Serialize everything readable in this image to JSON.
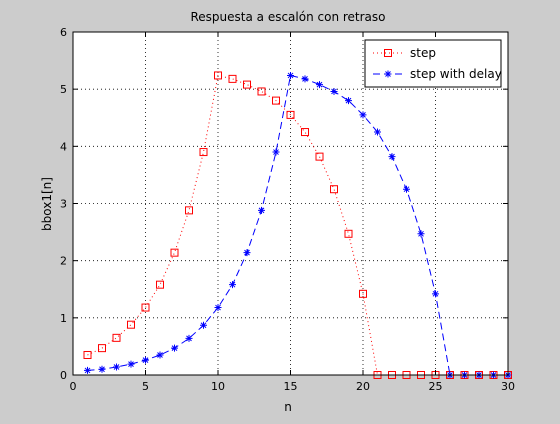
{
  "chart_data": {
    "type": "line",
    "title": "Respuesta a escalón con retraso",
    "xlabel": "n",
    "ylabel": "bbox1[n]",
    "xlim": [
      0,
      30
    ],
    "ylim": [
      0,
      6
    ],
    "xticks": [
      0,
      5,
      10,
      15,
      20,
      25,
      30
    ],
    "yticks": [
      0,
      1,
      2,
      3,
      4,
      5,
      6
    ],
    "grid": true,
    "legend_position": "top-right",
    "series": [
      {
        "name": "step",
        "color": "#ff0000",
        "line_style": "dotted",
        "marker": "square",
        "x": [
          1,
          2,
          3,
          4,
          5,
          6,
          7,
          8,
          9,
          10,
          11,
          12,
          13,
          14,
          15,
          16,
          17,
          18,
          19,
          20,
          21,
          22,
          23,
          24,
          25,
          26,
          27,
          28,
          29,
          30
        ],
        "y": [
          0.35,
          0.47,
          0.65,
          0.88,
          1.18,
          1.58,
          2.14,
          2.88,
          3.9,
          5.24,
          5.18,
          5.08,
          4.96,
          4.8,
          4.55,
          4.25,
          3.82,
          3.25,
          2.47,
          1.42,
          0,
          0,
          0,
          0,
          0,
          0,
          0,
          0,
          0,
          0
        ]
      },
      {
        "name": "step with delay",
        "color": "#0000ff",
        "line_style": "dashed",
        "marker": "asterisk",
        "x": [
          1,
          2,
          3,
          4,
          5,
          6,
          7,
          8,
          9,
          10,
          11,
          12,
          13,
          14,
          15,
          16,
          17,
          18,
          19,
          20,
          21,
          22,
          23,
          24,
          25,
          26,
          27,
          28,
          29,
          30
        ],
        "y": [
          0.08,
          0.1,
          0.14,
          0.19,
          0.26,
          0.35,
          0.47,
          0.64,
          0.87,
          1.18,
          1.58,
          2.14,
          2.88,
          3.9,
          5.24,
          5.18,
          5.08,
          4.96,
          4.8,
          4.55,
          4.25,
          3.82,
          3.25,
          2.47,
          1.42,
          0,
          0,
          0,
          0,
          0
        ]
      }
    ]
  }
}
